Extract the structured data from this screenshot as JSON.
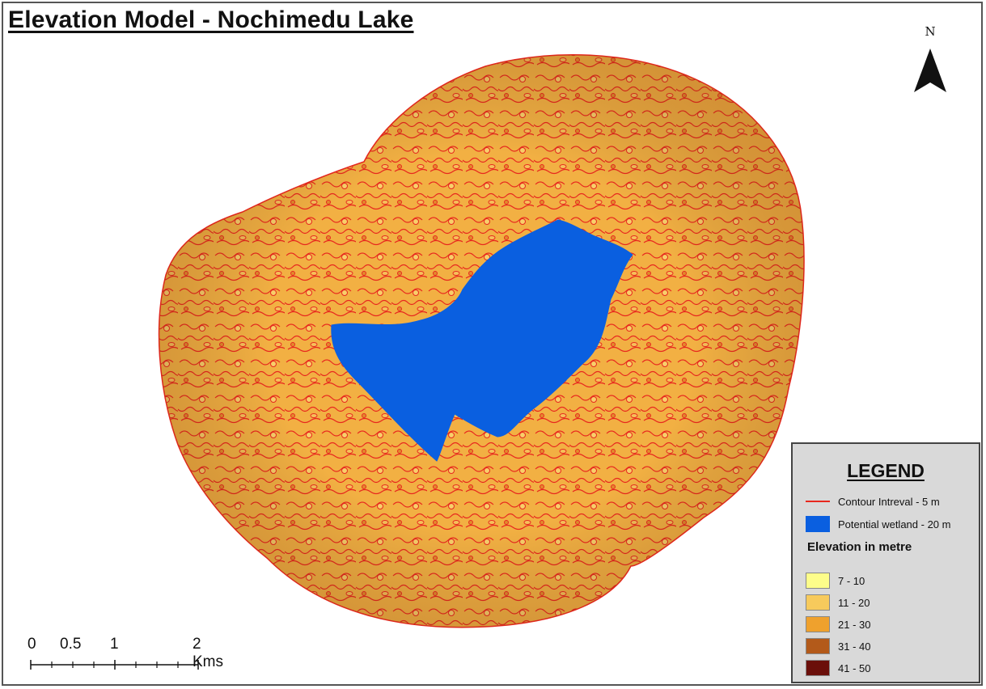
{
  "title": "Elevation Model - Nochimedu Lake",
  "north_arrow": {
    "label": "N"
  },
  "scale_bar": {
    "labels": [
      "0",
      "0.5",
      "1",
      "2 Kms"
    ]
  },
  "legend": {
    "heading": "LEGEND",
    "contour_label": "Contour Intreval - 5 m",
    "contour_color": "#e8281e",
    "wetland_label": "Potential wetland - 20 m",
    "wetland_color": "#0a5fe0",
    "elevation_heading": "Elevation in metre",
    "classes": [
      {
        "label": "7 - 10",
        "color": "#fdfd8a"
      },
      {
        "label": "11 - 20",
        "color": "#f7ca5c"
      },
      {
        "label": "21 - 30",
        "color": "#efa12d"
      },
      {
        "label": "31 - 40",
        "color": "#b35a1a"
      },
      {
        "label": "41 - 50",
        "color": "#6b0f0a"
      }
    ]
  }
}
